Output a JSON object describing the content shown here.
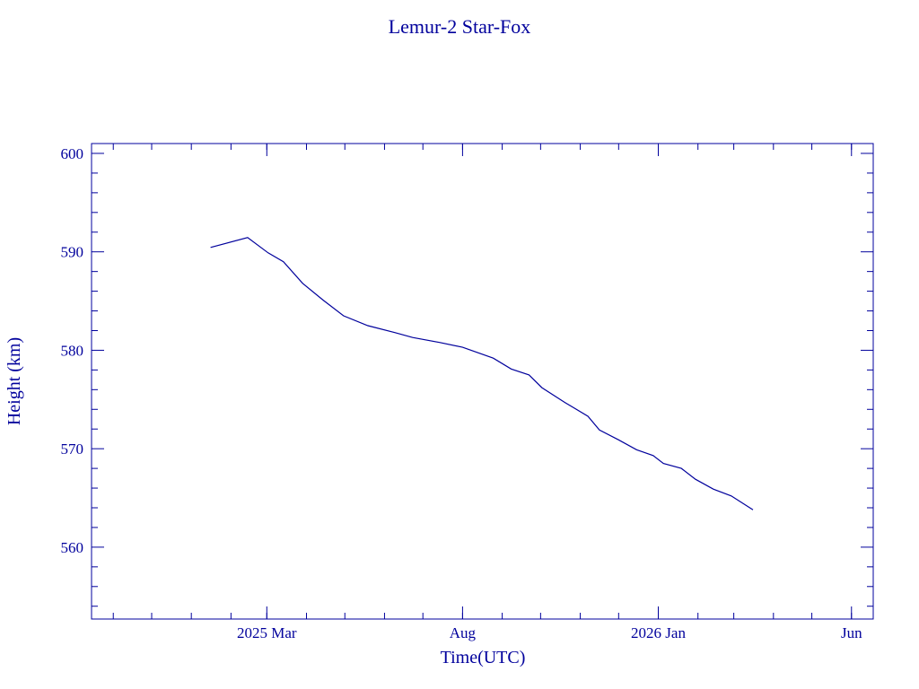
{
  "chart_data": {
    "type": "line",
    "title": "Lemur-2 Star-Fox",
    "xlabel": "Time(UTC)",
    "ylabel": "Height (km)",
    "xlim": [
      "2024-10-15",
      "2026-06-18"
    ],
    "ylim": [
      552.7,
      601.0
    ],
    "yticks": [
      560,
      570,
      580,
      590,
      600
    ],
    "xticks": [
      {
        "date": "2025-03-01",
        "label": "2025 Mar"
      },
      {
        "date": "2025-08-01",
        "label": "Aug"
      },
      {
        "date": "2026-01-01",
        "label": "2026 Jan"
      },
      {
        "date": "2026-06-01",
        "label": "Jun"
      }
    ],
    "grid": false,
    "color": "#00009c",
    "series": [
      {
        "name": "Height",
        "x": [
          "2025-01-16",
          "2025-02-14",
          "2025-03-02",
          "2025-03-14",
          "2025-03-29",
          "2025-04-14",
          "2025-04-30",
          "2025-05-19",
          "2025-06-09",
          "2025-06-23",
          "2025-07-14",
          "2025-08-01",
          "2025-08-25",
          "2025-09-08",
          "2025-09-22",
          "2025-10-02",
          "2025-10-20",
          "2025-11-07",
          "2025-11-16",
          "2025-12-01",
          "2025-12-15",
          "2025-12-28",
          "2026-01-05",
          "2026-01-19",
          "2026-01-30",
          "2026-02-13",
          "2026-02-27",
          "2026-03-16"
        ],
        "y": [
          590.45,
          591.45,
          589.9,
          589.0,
          586.8,
          585.1,
          583.5,
          582.5,
          581.8,
          581.3,
          580.8,
          580.3,
          579.2,
          578.1,
          577.5,
          576.2,
          574.7,
          573.3,
          571.9,
          570.9,
          569.9,
          569.3,
          568.5,
          568.0,
          566.9,
          565.9,
          565.2,
          563.8
        ]
      }
    ]
  }
}
